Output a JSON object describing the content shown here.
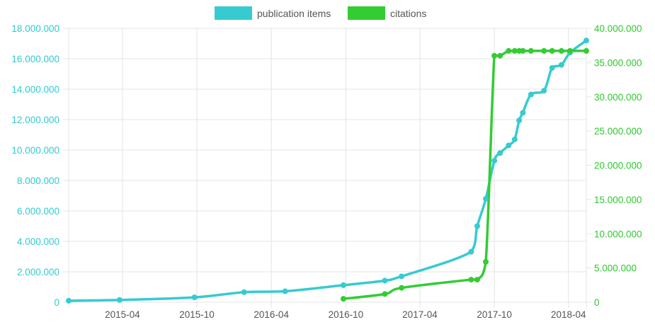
{
  "chart_data": {
    "type": "line",
    "legend_position": "top-center",
    "grid": true,
    "x_ticks": [
      "2015-04",
      "2015-10",
      "2016-04",
      "2016-10",
      "2017-04",
      "2017-10",
      "2018-04"
    ],
    "xlim": [
      "2014-11-20",
      "2018-05-15"
    ],
    "y_left": {
      "lim": [
        0,
        18000000
      ],
      "ticks": [
        "0",
        "2.000.000",
        "4.000.000",
        "6.000.000",
        "8.000.000",
        "10.000.000",
        "12.000.000",
        "14.000.000",
        "16.000.000",
        "18.000.000"
      ]
    },
    "y_right": {
      "lim": [
        0,
        40000000
      ],
      "ticks": [
        "0",
        "5.000.000",
        "10.000.000",
        "15.000.000",
        "20.000.000",
        "25.000.000",
        "30.000.000",
        "35.000.000",
        "40.000.000"
      ]
    },
    "series": [
      {
        "name": "publication items",
        "axis": "left",
        "color": "#36cbd0",
        "points": [
          [
            "2014-11-20",
            100000
          ],
          [
            "2015-03-25",
            150000
          ],
          [
            "2015-09-25",
            320000
          ],
          [
            "2016-01-25",
            660000
          ],
          [
            "2016-05-05",
            720000
          ],
          [
            "2016-09-25",
            1120000
          ],
          [
            "2017-01-05",
            1420000
          ],
          [
            "2017-02-15",
            1700000
          ],
          [
            "2017-08-05",
            3320000
          ],
          [
            "2017-08-20",
            5000000
          ],
          [
            "2017-09-10",
            6800000
          ],
          [
            "2017-10-01",
            9300000
          ],
          [
            "2017-10-15",
            9800000
          ],
          [
            "2017-11-05",
            10300000
          ],
          [
            "2017-11-20",
            10700000
          ],
          [
            "2017-12-01",
            11950000
          ],
          [
            "2017-12-10",
            12450000
          ],
          [
            "2017-12-30",
            13650000
          ],
          [
            "2018-01-31",
            13900000
          ],
          [
            "2018-02-20",
            15400000
          ],
          [
            "2018-03-15",
            15600000
          ],
          [
            "2018-04-05",
            16400000
          ],
          [
            "2018-05-15",
            17200000
          ]
        ]
      },
      {
        "name": "citations",
        "axis": "right",
        "color": "#33cc33",
        "points": [
          [
            "2016-09-25",
            500000
          ],
          [
            "2017-01-05",
            1200000
          ],
          [
            "2017-02-15",
            2100000
          ],
          [
            "2017-08-05",
            3300000
          ],
          [
            "2017-08-20",
            3300000
          ],
          [
            "2017-09-10",
            5900000
          ],
          [
            "2017-10-01",
            36000000
          ],
          [
            "2017-10-15",
            36000000
          ],
          [
            "2017-11-05",
            36700000
          ],
          [
            "2017-11-20",
            36700000
          ],
          [
            "2017-12-01",
            36700000
          ],
          [
            "2017-12-10",
            36700000
          ],
          [
            "2017-12-30",
            36700000
          ],
          [
            "2018-01-31",
            36700000
          ],
          [
            "2018-02-20",
            36700000
          ],
          [
            "2018-03-15",
            36700000
          ],
          [
            "2018-04-05",
            36700000
          ],
          [
            "2018-05-15",
            36700000
          ]
        ]
      }
    ]
  }
}
